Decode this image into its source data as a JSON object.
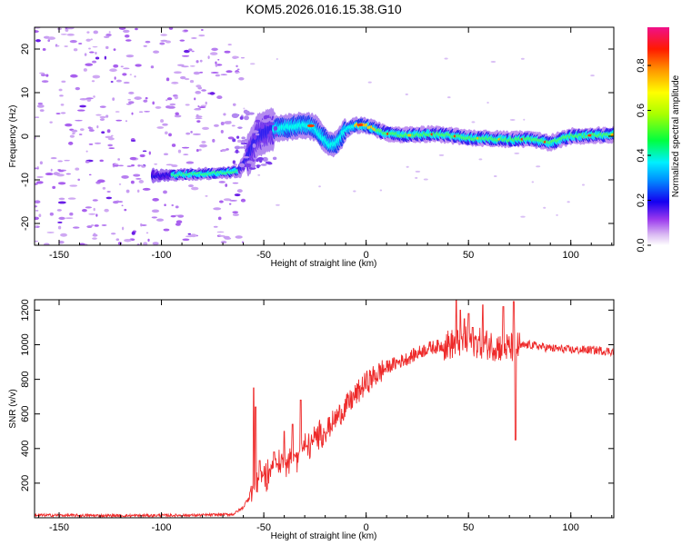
{
  "title": "KOM5.2026.016.15.38.G10",
  "colors": {
    "snr_line": "#ee2a2a",
    "frame": "#000000",
    "background": "#ffffff"
  },
  "chart_data": [
    {
      "type": "heatmap",
      "xlabel": "Height of straight line (km)",
      "ylabel": "Frequency (Hz)",
      "xlim": [
        -162,
        121
      ],
      "ylim": [
        -25,
        25
      ],
      "xticks": [
        "-150",
        "-100",
        "-50",
        "0",
        "50",
        "100"
      ],
      "yticks": [
        "20",
        "10",
        "0",
        "-10",
        "-20"
      ],
      "colormap": "rainbow",
      "ridge": [
        [
          -100,
          -9
        ],
        [
          -90,
          -8.8
        ],
        [
          -80,
          -8.6
        ],
        [
          -70,
          -8.4
        ],
        [
          -62,
          -8
        ],
        [
          -57,
          -4
        ],
        [
          -53,
          0
        ],
        [
          -47,
          1.5
        ],
        [
          -40,
          2
        ],
        [
          -30,
          2.5
        ],
        [
          -25,
          2
        ],
        [
          -18,
          -2
        ],
        [
          -14,
          -1.5
        ],
        [
          -10,
          1.5
        ],
        [
          -5,
          2.5
        ],
        [
          0,
          2.5
        ],
        [
          10,
          0.6
        ],
        [
          20,
          0.2
        ],
        [
          30,
          0.5
        ],
        [
          40,
          0.3
        ],
        [
          50,
          -0.4
        ],
        [
          60,
          -0.5
        ],
        [
          70,
          -0.8
        ],
        [
          80,
          -0.6
        ],
        [
          90,
          -1.5
        ],
        [
          100,
          0
        ],
        [
          110,
          0.2
        ],
        [
          121,
          0.3
        ]
      ],
      "colorbar": {
        "label": "Normalized spectral amplitude",
        "range": [
          0,
          0.97
        ],
        "ticks": [
          "0.0",
          "0.2",
          "0.4",
          "0.6",
          "0.8"
        ]
      }
    },
    {
      "type": "line",
      "xlabel": "Height of straight line (km)",
      "ylabel": "SNR (v/v)",
      "xlim": [
        -162,
        121
      ],
      "ylim": [
        0,
        1260
      ],
      "xticks": [
        "-150",
        "-100",
        "-50",
        "0",
        "50",
        "100"
      ],
      "yticks": [
        "1200",
        "1000",
        "800",
        "600",
        "400",
        "200"
      ],
      "envelope": [
        [
          -162,
          15
        ],
        [
          -120,
          12
        ],
        [
          -80,
          15
        ],
        [
          -65,
          20
        ],
        [
          -60,
          60
        ],
        [
          -55,
          180
        ],
        [
          -50,
          250
        ],
        [
          -45,
          300
        ],
        [
          -40,
          330
        ],
        [
          -30,
          400
        ],
        [
          -20,
          500
        ],
        [
          -10,
          640
        ],
        [
          0,
          780
        ],
        [
          10,
          870
        ],
        [
          20,
          920
        ],
        [
          30,
          980
        ],
        [
          40,
          1000
        ],
        [
          50,
          1020
        ],
        [
          60,
          1000
        ],
        [
          70,
          980
        ],
        [
          80,
          1000
        ],
        [
          90,
          980
        ],
        [
          100,
          970
        ],
        [
          110,
          970
        ],
        [
          121,
          960
        ]
      ],
      "peaks": [
        [
          -55,
          750
        ],
        [
          -54,
          640
        ],
        [
          -52,
          330
        ],
        [
          -45,
          380
        ],
        [
          -40,
          500
        ],
        [
          -36,
          540
        ],
        [
          -32,
          680
        ],
        [
          -18,
          580
        ],
        [
          -16,
          540
        ],
        [
          44,
          1260
        ],
        [
          46,
          1200
        ],
        [
          48,
          1150
        ],
        [
          50,
          1180
        ],
        [
          52,
          1100
        ],
        [
          57,
          1230
        ],
        [
          67,
          1220
        ],
        [
          72,
          1250
        ],
        [
          73,
          450
        ]
      ]
    }
  ]
}
